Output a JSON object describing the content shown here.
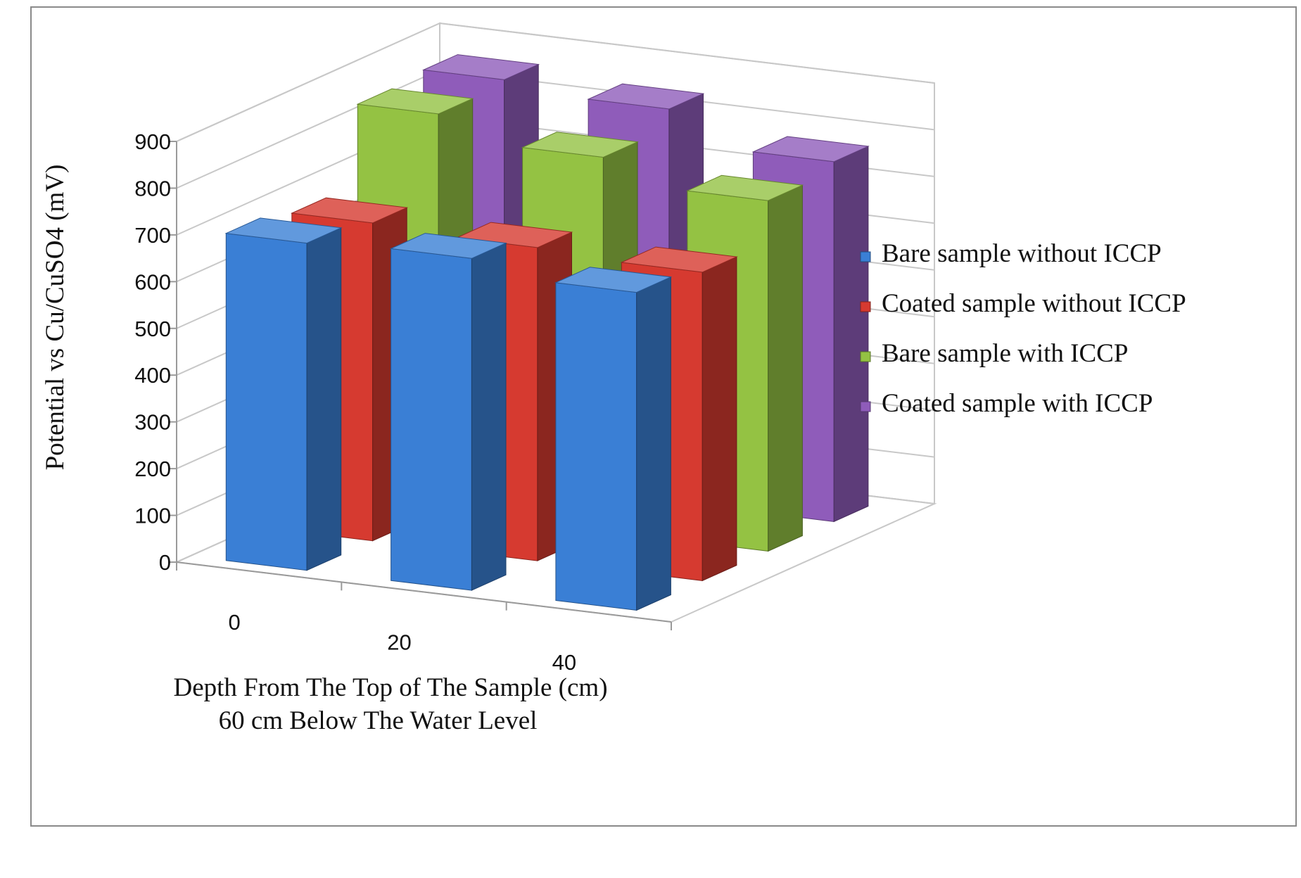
{
  "chart_data": {
    "type": "bar",
    "categories": [
      "0",
      "20",
      "40"
    ],
    "series": [
      {
        "name": "Bare sample without ICCP",
        "values": [
          700,
          710,
          680
        ],
        "color": "#3a7fd5"
      },
      {
        "name": "Coated sample without ICCP",
        "values": [
          680,
          670,
          660
        ],
        "color": "#d63a30"
      },
      {
        "name": "Bare sample with ICCP",
        "values": [
          850,
          800,
          750
        ],
        "color": "#94c243"
      },
      {
        "name": "Coated sample with ICCP",
        "values": [
          860,
          840,
          770
        ],
        "color": "#8f5cba"
      }
    ],
    "y_ticks": [
      "0",
      "100",
      "200",
      "300",
      "400",
      "500",
      "600",
      "700",
      "800",
      "900"
    ],
    "ylim": [
      0,
      900
    ],
    "ylabel": "Potential vs Cu/CuSO4 (mV)",
    "xlabel": "Depth  From The Top of The Sample (cm)",
    "xlabel_line2": "60 cm Below The Water Level",
    "grid": true,
    "legend_position": "right",
    "style": "3d-clustered-column"
  }
}
